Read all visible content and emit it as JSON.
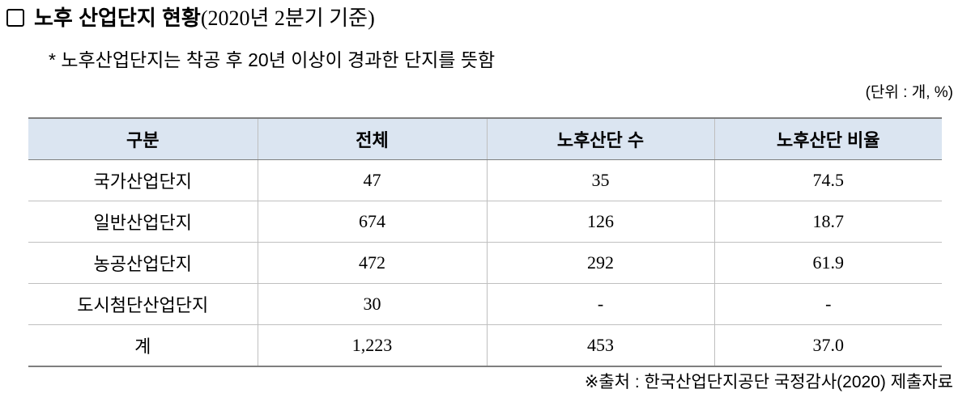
{
  "header": {
    "title": "노후 산업단지 현황",
    "subtitle": "(2020년 2분기 기준)"
  },
  "note": "* 노후산업단지는 착공 후 20년 이상이 경과한 단지를 뜻함",
  "unit": "(단위 : 개, %)",
  "table": {
    "columns": [
      "구분",
      "전체",
      "노후산단 수",
      "노후산단 비율"
    ],
    "rows": [
      [
        "국가산업단지",
        "47",
        "35",
        "74.5"
      ],
      [
        "일반산업단지",
        "674",
        "126",
        "18.7"
      ],
      [
        "농공산업단지",
        "472",
        "292",
        "61.9"
      ],
      [
        "도시첨단산업단지",
        "30",
        "-",
        "-"
      ],
      [
        "계",
        "1,223",
        "453",
        "37.0"
      ]
    ]
  },
  "source": "※출처 : 한국산업단지공단 국정감사(2020) 제출자료"
}
